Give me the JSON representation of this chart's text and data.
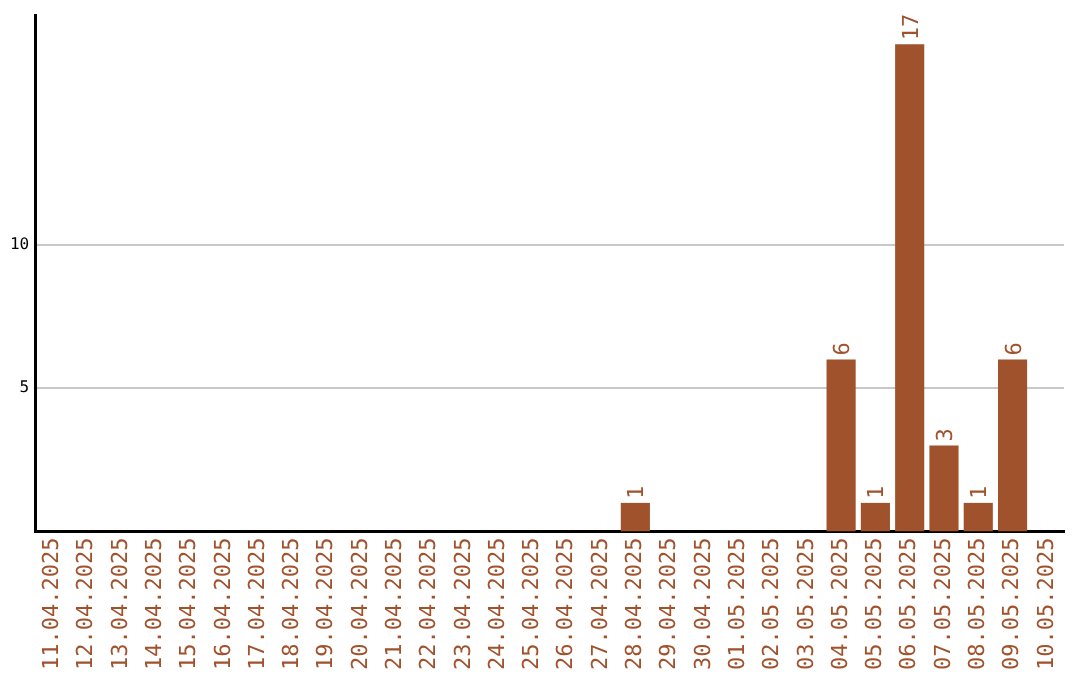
{
  "chart_data": {
    "type": "bar",
    "categories": [
      "11.04.2025",
      "12.04.2025",
      "13.04.2025",
      "14.04.2025",
      "15.04.2025",
      "16.04.2025",
      "17.04.2025",
      "18.04.2025",
      "19.04.2025",
      "20.04.2025",
      "21.04.2025",
      "22.04.2025",
      "23.04.2025",
      "24.04.2025",
      "25.04.2025",
      "26.04.2025",
      "27.04.2025",
      "28.04.2025",
      "29.04.2025",
      "30.04.2025",
      "01.05.2025",
      "02.05.2025",
      "03.05.2025",
      "04.05.2025",
      "05.05.2025",
      "06.05.2025",
      "07.05.2025",
      "08.05.2025",
      "09.05.2025",
      "10.05.2025"
    ],
    "values": [
      0,
      0,
      0,
      0,
      0,
      0,
      0,
      0,
      0,
      0,
      0,
      0,
      0,
      0,
      0,
      0,
      0,
      1,
      0,
      0,
      0,
      0,
      0,
      6,
      1,
      17,
      3,
      1,
      6,
      0
    ],
    "value_labels": [
      null,
      null,
      null,
      null,
      null,
      null,
      null,
      null,
      null,
      null,
      null,
      null,
      null,
      null,
      null,
      null,
      null,
      "1",
      null,
      null,
      null,
      null,
      null,
      "6",
      "1",
      "17",
      "3",
      "1",
      "6",
      null
    ],
    "color": "#a0522d",
    "ylim": [
      0,
      18
    ],
    "yticks": [
      5,
      10
    ],
    "grid": "y",
    "legend": false
  }
}
